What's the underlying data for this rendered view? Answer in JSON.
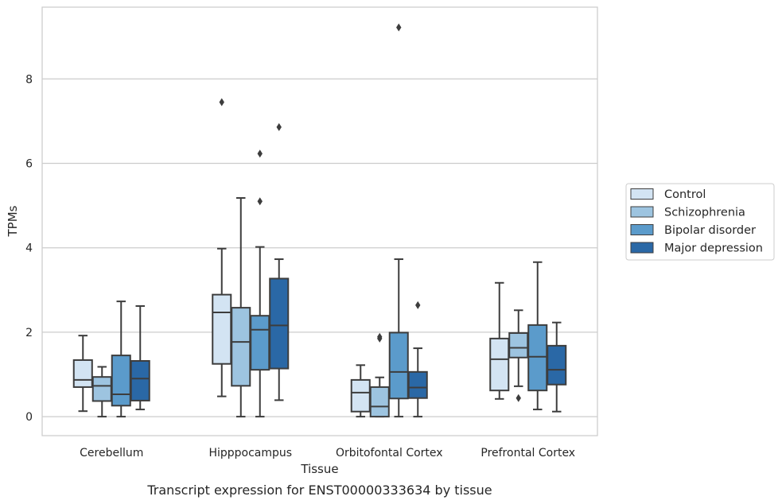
{
  "chart_data": {
    "type": "boxplot",
    "caption": "Transcript expression for ENST00000333634 by tissue",
    "xlabel": "Tissue",
    "ylabel": "TPMs",
    "ylim": [
      -0.45,
      9.7
    ],
    "yticks": [
      0,
      2,
      4,
      6,
      8
    ],
    "grid": "horizontal",
    "legend_placement": "right",
    "categories": [
      "Cerebellum",
      "Hipppocampus",
      "Orbitofontal Cortex",
      "Prefrontal Cortex"
    ],
    "series": [
      {
        "name": "Control",
        "color": "#d3e4f3",
        "boxes": [
          {
            "whislo": 0.13,
            "q1": 0.7,
            "med": 0.87,
            "q3": 1.34,
            "whishi": 1.92,
            "fliers": []
          },
          {
            "whislo": 0.48,
            "q1": 1.25,
            "med": 2.47,
            "q3": 2.89,
            "whishi": 3.98,
            "fliers": [
              7.45
            ]
          },
          {
            "whislo": 0.0,
            "q1": 0.12,
            "med": 0.57,
            "q3": 0.87,
            "whishi": 1.22,
            "fliers": []
          },
          {
            "whislo": 0.42,
            "q1": 0.62,
            "med": 1.36,
            "q3": 1.85,
            "whishi": 3.17,
            "fliers": []
          }
        ]
      },
      {
        "name": "Schizophrenia",
        "color": "#9dc4e0",
        "boxes": [
          {
            "whislo": 0.0,
            "q1": 0.37,
            "med": 0.73,
            "q3": 0.94,
            "whishi": 1.18,
            "fliers": []
          },
          {
            "whislo": 0.0,
            "q1": 0.73,
            "med": 1.77,
            "q3": 2.58,
            "whishi": 5.18,
            "fliers": []
          },
          {
            "whislo": 0.0,
            "q1": 0.0,
            "med": 0.24,
            "q3": 0.7,
            "whishi": 0.93,
            "fliers": [
              1.85,
              1.89
            ]
          },
          {
            "whislo": 0.72,
            "q1": 1.4,
            "med": 1.63,
            "q3": 1.98,
            "whishi": 2.52,
            "fliers": [
              0.44
            ]
          }
        ]
      },
      {
        "name": "Bipolar disorder",
        "color": "#5b9bcb",
        "boxes": [
          {
            "whislo": 0.0,
            "q1": 0.26,
            "med": 0.53,
            "q3": 1.45,
            "whishi": 2.73,
            "fliers": []
          },
          {
            "whislo": 0.0,
            "q1": 1.11,
            "med": 2.06,
            "q3": 2.39,
            "whishi": 4.02,
            "fliers": [
              5.1,
              6.23
            ]
          },
          {
            "whislo": 0.0,
            "q1": 0.43,
            "med": 1.06,
            "q3": 1.99,
            "whishi": 3.73,
            "fliers": [
              9.22
            ]
          },
          {
            "whislo": 0.17,
            "q1": 0.62,
            "med": 1.42,
            "q3": 2.17,
            "whishi": 3.66,
            "fliers": []
          }
        ]
      },
      {
        "name": "Major depression",
        "color": "#2a68a6",
        "boxes": [
          {
            "whislo": 0.17,
            "q1": 0.38,
            "med": 0.9,
            "q3": 1.32,
            "whishi": 2.62,
            "fliers": []
          },
          {
            "whislo": 0.39,
            "q1": 1.14,
            "med": 2.16,
            "q3": 3.27,
            "whishi": 3.73,
            "fliers": [
              6.86
            ]
          },
          {
            "whislo": 0.0,
            "q1": 0.44,
            "med": 0.69,
            "q3": 1.06,
            "whishi": 1.62,
            "fliers": [
              2.64
            ]
          },
          {
            "whislo": 0.12,
            "q1": 0.76,
            "med": 1.11,
            "q3": 1.68,
            "whishi": 2.23,
            "fliers": []
          }
        ]
      }
    ]
  }
}
